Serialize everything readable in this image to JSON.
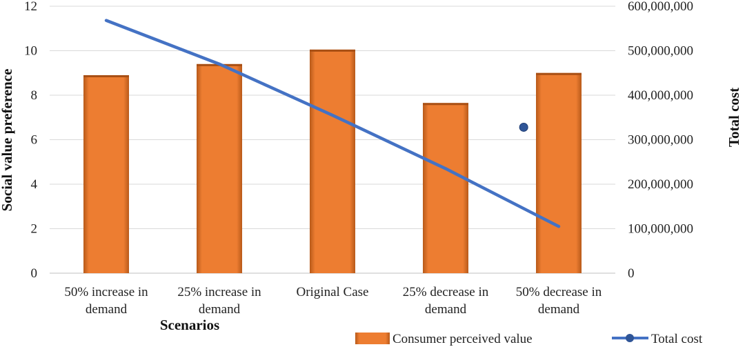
{
  "chart_data": {
    "type": "bar",
    "categories": [
      [
        "50% increase in",
        "demand"
      ],
      [
        "25% increase in",
        "demand"
      ],
      [
        "Original Case"
      ],
      [
        "25% decrease in",
        "demand"
      ],
      [
        "50% decrease in",
        "demand"
      ]
    ],
    "series": [
      {
        "name": "Consumer perceived value",
        "type": "bar",
        "axis": "left",
        "color": "#ED7D31",
        "values": [
          8.9,
          9.4,
          10.05,
          7.65,
          9.0
        ]
      },
      {
        "name": "Total cost",
        "type": "line",
        "axis": "right",
        "color": "#4472C4",
        "values": [
          568000000,
          470000000,
          355000000,
          235000000,
          105000000
        ]
      }
    ],
    "extra_marker": {
      "series": "Total cost",
      "category_index": 3.69,
      "value": 328000000
    },
    "xlabel": "Scenarios",
    "ylabel": "Social value preference",
    "y2label": "Total cost",
    "ylim": [
      0,
      12
    ],
    "y2lim": [
      0,
      600000000
    ],
    "yticks": [
      "0",
      "2",
      "4",
      "6",
      "8",
      "10",
      "12"
    ],
    "y2ticks": [
      "0",
      "100,000,000",
      "200,000,000",
      "300,000,000",
      "400,000,000",
      "500,000,000",
      "600,000,000"
    ],
    "grid": true,
    "legend_position": "bottom-right"
  }
}
